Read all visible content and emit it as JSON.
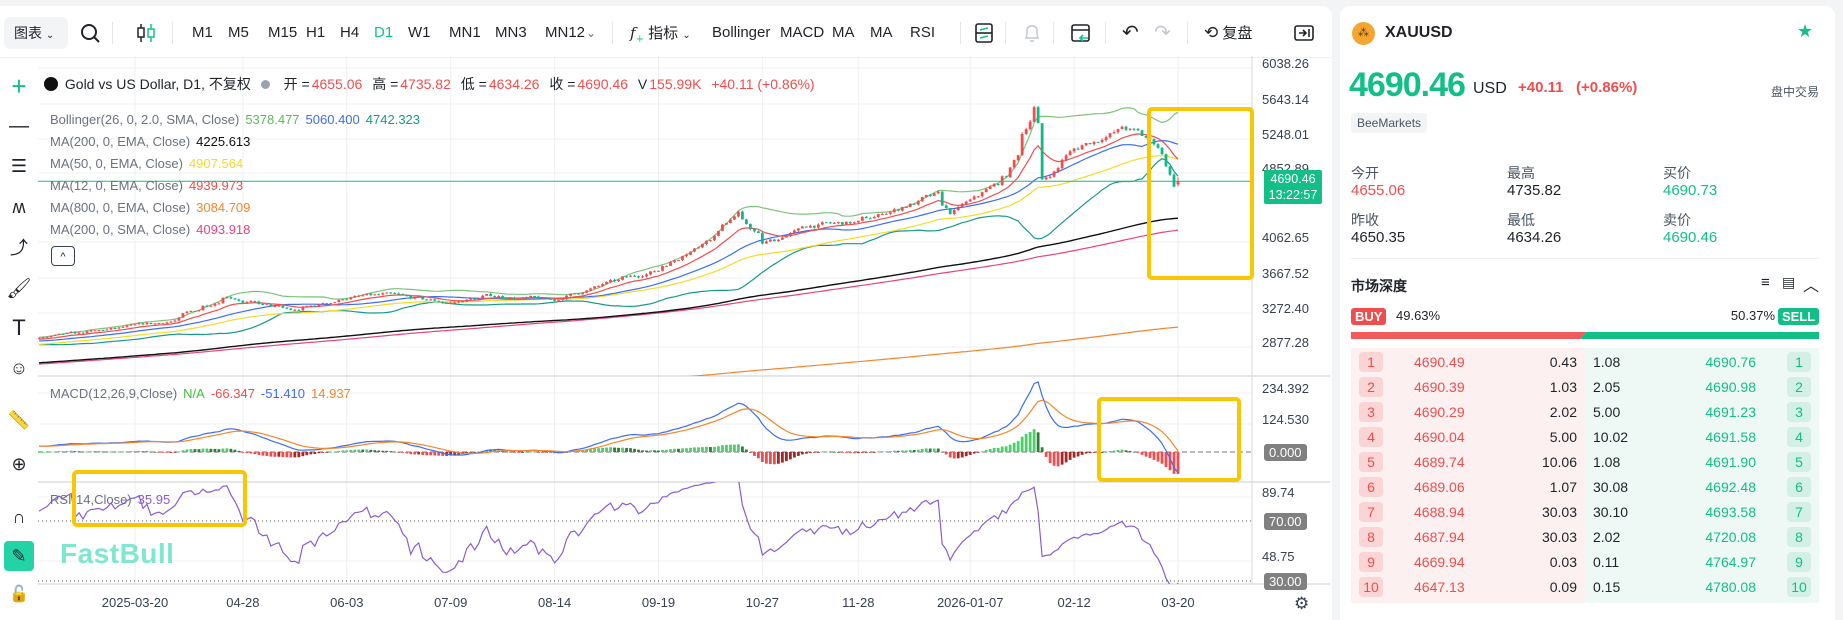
{
  "toolbar": {
    "chart_menu": "图表",
    "timeframes": [
      "M1",
      "M5",
      "M15",
      "H1",
      "H4",
      "D1",
      "W1",
      "MN1",
      "MN3",
      "MN12"
    ],
    "active_timeframe": "D1",
    "indicators_label": "指标",
    "indicator_shortcuts": [
      "Bollinger",
      "MACD",
      "MA",
      "MA",
      "RSI"
    ],
    "replay_label": "复盘"
  },
  "legend": {
    "symbol_title": "Gold vs US Dollar, D1, 不复权",
    "open_label": "开 =",
    "open": "4655.06",
    "high_label": "高 =",
    "high": "4735.82",
    "low_label": "低 =",
    "low": "4634.26",
    "close_label": "收 =",
    "close": "4690.46",
    "volume_label": "V",
    "volume": "155.99K",
    "change": "+40.11 (+0.86%)",
    "indicators": [
      {
        "label": "Bollinger(26, 0, 2.0, SMA, Close)",
        "values": [
          {
            "v": "5378.477",
            "color": "#5cb85c"
          },
          {
            "v": "5060.400",
            "color": "#3d6ef5"
          },
          {
            "v": "4742.323",
            "color": "#169b8a"
          }
        ]
      },
      {
        "label": "MA(200, 0, EMA, Close)",
        "values": [
          {
            "v": "4225.613",
            "color": "#111111"
          }
        ]
      },
      {
        "label": "MA(50, 0, EMA, Close)",
        "values": [
          {
            "v": "4907.564",
            "color": "#f2dc2b"
          }
        ]
      },
      {
        "label": "MA(12, 0, EMA, Close)",
        "values": [
          {
            "v": "4939.973",
            "color": "#f04e4e"
          }
        ]
      },
      {
        "label": "MA(800, 0, EMA, Close)",
        "values": [
          {
            "v": "3084.709",
            "color": "#f5862c"
          }
        ]
      },
      {
        "label": "MA(200, 0, SMA, Close)",
        "values": [
          {
            "v": "4093.918",
            "color": "#e8457a"
          }
        ]
      }
    ]
  },
  "macd": {
    "label": "MACD(12,26,9,Close)",
    "values": [
      {
        "v": "N/A",
        "color": "#3cc23c"
      },
      {
        "v": "-66.347",
        "color": "#f04e4e"
      },
      {
        "v": "-51.410",
        "color": "#3d6ef5"
      },
      {
        "v": "14.937",
        "color": "#f5862c"
      }
    ]
  },
  "rsi": {
    "label": "RSI(14,Close)",
    "value": "35.95",
    "color": "#8a5cd6"
  },
  "price_axis": [
    "6038.26",
    "5643.14",
    "5248.01",
    "4852.89",
    "4062.65",
    "3667.52",
    "3272.40",
    "2877.28"
  ],
  "macd_axis": [
    "234.392",
    "124.530"
  ],
  "macd_zero_tag": "0.000",
  "rsi_axis": [
    "89.74",
    "48.75"
  ],
  "rsi_tags": [
    "70.00",
    "30.00"
  ],
  "last_price_tag": {
    "price": "4690.46",
    "countdown": "13:22:57",
    "color": "#12bf86"
  },
  "watermark": "FastBull",
  "colors": {
    "up": "#f04e4e",
    "down": "#12b886",
    "accent": "#12c28c",
    "highlight": "#f9c600"
  },
  "chart_data": {
    "type": "candlestick",
    "title": "Gold vs US Dollar, D1, 不复权",
    "x_ticks": [
      {
        "date": "2025-03-20",
        "label": "2025-03-20"
      },
      {
        "date": "2025-04-28",
        "label": "04-28"
      },
      {
        "date": "2025-06-03",
        "label": "06-03"
      },
      {
        "date": "2025-07-09",
        "label": "07-09"
      },
      {
        "date": "2025-08-14",
        "label": "08-14"
      },
      {
        "date": "2025-09-19",
        "label": "09-19"
      },
      {
        "date": "2025-10-27",
        "label": "10-27"
      },
      {
        "date": "2025-11-28",
        "label": "11-28"
      },
      {
        "date": "2026-01-07",
        "label": "2026-01-07"
      },
      {
        "date": "2026-02-12",
        "label": "02-12"
      },
      {
        "date": "2026-03-20",
        "label": "03-20"
      }
    ],
    "y_range": [
      2700,
      6100
    ],
    "approx_close_path": [
      [
        "2025-02-14",
        2900
      ],
      [
        "2025-03-20",
        3040
      ],
      [
        "2025-04-03",
        3110
      ],
      [
        "2025-04-22",
        3400
      ],
      [
        "2025-04-28",
        3320
      ],
      [
        "2025-05-15",
        3220
      ],
      [
        "2025-06-03",
        3370
      ],
      [
        "2025-06-16",
        3400
      ],
      [
        "2025-07-09",
        3310
      ],
      [
        "2025-07-23",
        3390
      ],
      [
        "2025-08-14",
        3340
      ],
      [
        "2025-09-02",
        3530
      ],
      [
        "2025-09-19",
        3680
      ],
      [
        "2025-10-08",
        4050
      ],
      [
        "2025-10-17",
        4330
      ],
      [
        "2025-10-27",
        3980
      ],
      [
        "2025-11-12",
        4190
      ],
      [
        "2025-11-28",
        4220
      ],
      [
        "2025-12-26",
        4530
      ],
      [
        "2025-12-31",
        4330
      ],
      [
        "2026-01-07",
        4460
      ],
      [
        "2026-01-20",
        4750
      ],
      [
        "2026-01-28",
        5400
      ],
      [
        "2026-01-29",
        5540
      ],
      [
        "2026-02-02",
        4700
      ],
      [
        "2026-02-12",
        5050
      ],
      [
        "2026-03-02",
        5300
      ],
      [
        "2026-03-10",
        5180
      ],
      [
        "2026-03-16",
        5000
      ],
      [
        "2026-03-19",
        4650
      ],
      [
        "2026-03-20",
        4690.46
      ]
    ],
    "last_bar": {
      "open": 4655.06,
      "high": 4735.82,
      "low": 4634.26,
      "close": 4690.46
    },
    "grid": true
  },
  "panel": {
    "symbol": "XAUUSD",
    "price": "4690.46",
    "currency": "USD",
    "change": "+40.11",
    "change_pct": "(+0.86%)",
    "session": "盘中交易",
    "broker": "BeeMarkets",
    "stats": [
      {
        "label": "今开",
        "value": "4655.06",
        "tone": "red"
      },
      {
        "label": "最高",
        "value": "4735.82",
        "tone": ""
      },
      {
        "label": "买价",
        "value": "4690.73",
        "tone": "green"
      },
      {
        "label": "昨收",
        "value": "4650.35",
        "tone": ""
      },
      {
        "label": "最低",
        "value": "4634.26",
        "tone": ""
      },
      {
        "label": "卖价",
        "value": "4690.46",
        "tone": "green"
      }
    ],
    "depth_title": "市场深度",
    "buy_label": "BUY",
    "buy_pct": "49.63%",
    "buy_ratio": 0.4963,
    "sell_label": "SELL",
    "sell_pct": "50.37%",
    "depth": [
      {
        "n": "1",
        "bid": "4690.49",
        "bid_qty": "0.43",
        "ask_qty": "1.08",
        "ask": "4690.76"
      },
      {
        "n": "2",
        "bid": "4690.39",
        "bid_qty": "1.03",
        "ask_qty": "2.05",
        "ask": "4690.98"
      },
      {
        "n": "3",
        "bid": "4690.29",
        "bid_qty": "2.02",
        "ask_qty": "5.00",
        "ask": "4691.23"
      },
      {
        "n": "4",
        "bid": "4690.04",
        "bid_qty": "5.00",
        "ask_qty": "10.02",
        "ask": "4691.58"
      },
      {
        "n": "5",
        "bid": "4689.74",
        "bid_qty": "10.06",
        "ask_qty": "1.08",
        "ask": "4691.90"
      },
      {
        "n": "6",
        "bid": "4689.06",
        "bid_qty": "1.07",
        "ask_qty": "30.08",
        "ask": "4692.48"
      },
      {
        "n": "7",
        "bid": "4688.94",
        "bid_qty": "30.03",
        "ask_qty": "30.10",
        "ask": "4693.58"
      },
      {
        "n": "8",
        "bid": "4687.94",
        "bid_qty": "30.03",
        "ask_qty": "2.02",
        "ask": "4720.08"
      },
      {
        "n": "9",
        "bid": "4669.94",
        "bid_qty": "0.03",
        "ask_qty": "0.11",
        "ask": "4764.97"
      },
      {
        "n": "10",
        "bid": "4647.13",
        "bid_qty": "0.09",
        "ask_qty": "0.15",
        "ask": "4780.08"
      }
    ]
  }
}
